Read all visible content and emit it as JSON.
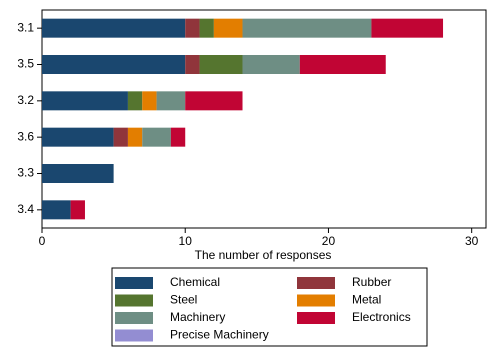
{
  "chart_data": {
    "type": "stacked-barh",
    "categories": [
      "3.1",
      "3.5",
      "3.2",
      "3.6",
      "3.3",
      "3.4"
    ],
    "series": [
      {
        "name": "Chemical",
        "color": "#1a476f",
        "values": [
          10,
          10,
          6,
          5,
          5,
          2
        ]
      },
      {
        "name": "Rubber",
        "color": "#90353b",
        "values": [
          1,
          1,
          0,
          1,
          0,
          0
        ]
      },
      {
        "name": "Steel",
        "color": "#55752f",
        "values": [
          1,
          3,
          1,
          0,
          0,
          0
        ]
      },
      {
        "name": "Metal",
        "color": "#e37e00",
        "values": [
          2,
          0,
          1,
          1,
          0,
          0
        ]
      },
      {
        "name": "Machinery",
        "color": "#6e8e84",
        "values": [
          9,
          4,
          2,
          2,
          0,
          0
        ]
      },
      {
        "name": "Electronics",
        "color": "#c10534",
        "values": [
          5,
          6,
          4,
          1,
          0,
          1
        ]
      },
      {
        "name": "Precise Machinery",
        "color": "#938dd2",
        "values": [
          0,
          0,
          0,
          0,
          0,
          0
        ]
      }
    ],
    "x_label": "The number of responses",
    "xlim": [
      0,
      31
    ],
    "xticks": [
      0,
      10,
      20,
      30
    ]
  }
}
